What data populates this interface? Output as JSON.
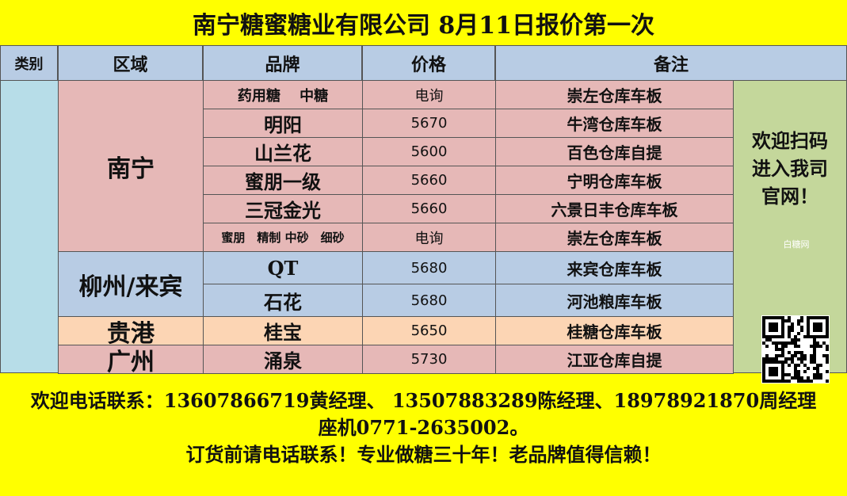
{
  "header": {
    "title": "南宁糖蜜糖业有限公司 8月11日报价第一次"
  },
  "table": {
    "columns": [
      "类别",
      "区域",
      "品牌",
      "价格",
      "备注"
    ],
    "groups": [
      {
        "region": "南宁",
        "rows": [
          {
            "brand": "药用糖　 中糖",
            "price": "电询",
            "note": "崇左仓库车板"
          },
          {
            "brand": "明阳",
            "price": 5670,
            "note": "牛湾仓库车板"
          },
          {
            "brand": "山兰花",
            "price": 5600,
            "note": "百色仓库自提"
          },
          {
            "brand": "蜜朋一级",
            "price": 5660,
            "note": "宁明仓库车板"
          },
          {
            "brand": "三冠金光",
            "price": 5660,
            "note": "六景日丰仓库车板"
          },
          {
            "brand": "蜜朋　精制 中砂　细砂",
            "price": "电询",
            "note": "崇左仓库车板"
          }
        ]
      },
      {
        "region": "柳州/来宾",
        "rows": [
          {
            "brand": "QT",
            "price": 5680,
            "note": "来宾仓库车板"
          },
          {
            "brand": "石花",
            "price": 5680,
            "note": "河池粮库车板"
          }
        ]
      },
      {
        "region": "贵港",
        "rows": [
          {
            "brand": "桂宝",
            "price": 5650,
            "note": "桂糖仓库车板"
          }
        ]
      },
      {
        "region": "广州",
        "rows": [
          {
            "brand": "涌泉",
            "price": 5730,
            "note": "江亚仓库自提"
          }
        ]
      }
    ]
  },
  "side": {
    "lines": [
      "欢迎扫码",
      "进入我司",
      "官网！"
    ],
    "watermark": "白糖网"
  },
  "footer": {
    "lines": [
      "欢迎电话联系：13607866719黄经理、 13507883289陈经理、18978921870周经理",
      "座机0771-2635002。",
      "订货前请电话联系！专业做糖三十年！老品牌值得信赖！"
    ]
  }
}
